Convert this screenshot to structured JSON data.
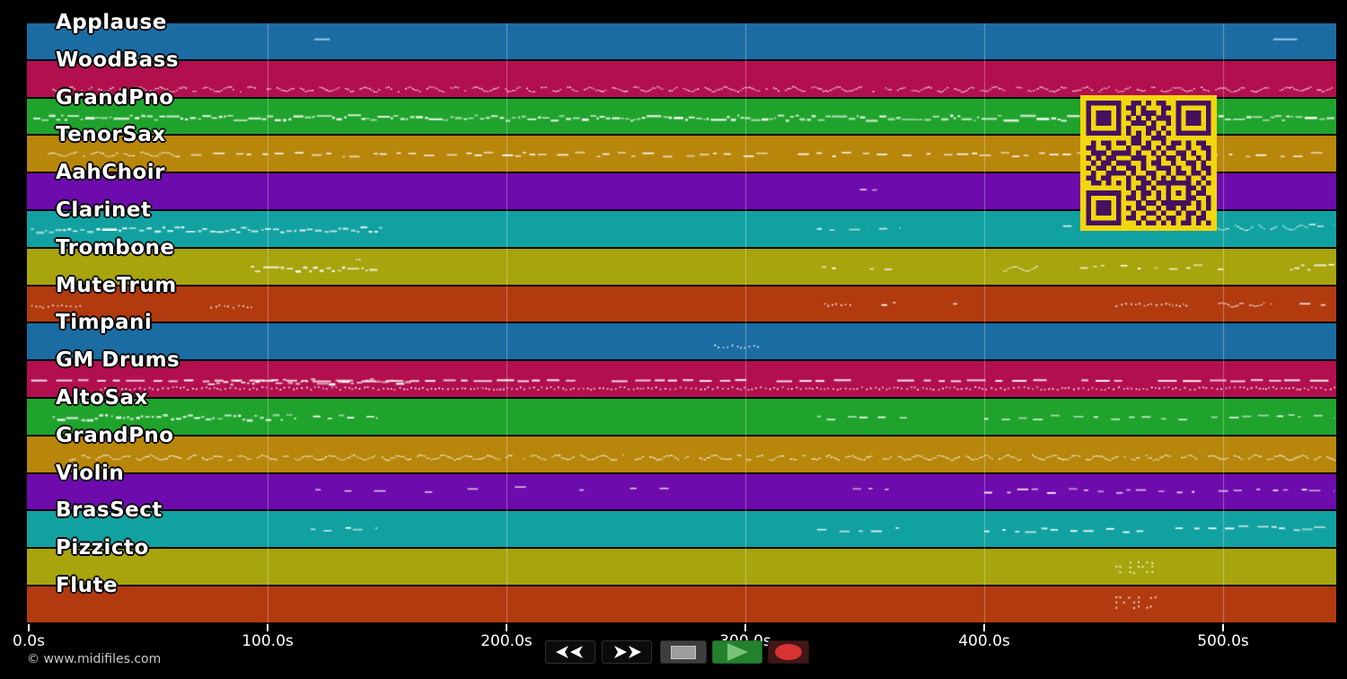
{
  "app": {
    "background": "#000000",
    "kind": "midi-track-visualizer"
  },
  "watermark": {
    "text": "© www.midifiles.com"
  },
  "axis": {
    "unit": "s",
    "t_max": 547,
    "ticks": [
      {
        "t": 0,
        "label": "0.0s"
      },
      {
        "t": 100,
        "label": "100.0s"
      },
      {
        "t": 200,
        "label": "200.0s"
      },
      {
        "t": 300,
        "label": "300.0s"
      },
      {
        "t": 400,
        "label": "400.0s"
      },
      {
        "t": 500,
        "label": "500.0s"
      }
    ],
    "gridline_color": "rgba(255,255,255,0.33)"
  },
  "palette": [
    "#1b6ca3",
    "#b20f4e",
    "#1fa32c",
    "#b8860b",
    "#6d0bad",
    "#12a1a1",
    "#a7a40d",
    "#b23a0f"
  ],
  "note_color": "#ffffff",
  "tracks": [
    {
      "name": "Applause",
      "color": "#1b6ca3",
      "segments": [
        {
          "t0": 119.5,
          "t1": 126,
          "y": 0.42,
          "style": "line",
          "color": "#8fbede"
        },
        {
          "t0": 521,
          "t1": 531,
          "y": 0.42,
          "style": "line",
          "color": "#8fbede"
        }
      ]
    },
    {
      "name": "WoodBass",
      "color": "#b20f4e",
      "segments": [
        {
          "t0": 10,
          "t1": 547,
          "y": 0.78,
          "style": "wavy",
          "density": 0.9
        }
      ]
    },
    {
      "name": "GrandPno",
      "color": "#1fa32c",
      "segments": [
        {
          "t0": 2,
          "t1": 547,
          "y": 0.52,
          "style": "block",
          "density": 0.85
        }
      ]
    },
    {
      "name": "TenorSax",
      "color": "#b8860b",
      "segments": [
        {
          "t0": 8,
          "t1": 62,
          "y": 0.5,
          "style": "wavy",
          "density": 0.5
        },
        {
          "t0": 62,
          "t1": 310,
          "y": 0.5,
          "style": "dash",
          "density": 0.55
        },
        {
          "t0": 322,
          "t1": 547,
          "y": 0.5,
          "style": "dash",
          "density": 0.45
        }
      ]
    },
    {
      "name": "AahChoir",
      "color": "#6d0bad",
      "segments": [
        {
          "t0": 348,
          "t1": 359,
          "y": 0.42,
          "style": "dash",
          "density": 0.5
        }
      ]
    },
    {
      "name": "Clarinet",
      "color": "#12a1a1",
      "segments": [
        {
          "t0": 1,
          "t1": 148,
          "y": 0.5,
          "style": "block",
          "density": 0.7
        },
        {
          "t0": 330,
          "t1": 352,
          "y": 0.45,
          "style": "dash",
          "density": 0.5
        },
        {
          "t0": 356,
          "t1": 365,
          "y": 0.5,
          "style": "dash",
          "density": 0.5
        },
        {
          "t0": 433,
          "t1": 462,
          "y": 0.45,
          "style": "dash",
          "density": 0.4
        },
        {
          "t0": 488,
          "t1": 535,
          "y": 0.45,
          "style": "wavy",
          "density": 0.5
        },
        {
          "t0": 536,
          "t1": 547,
          "y": 0.4,
          "style": "dash",
          "density": 0.6
        }
      ]
    },
    {
      "name": "Trombone",
      "color": "#a7a40d",
      "segments": [
        {
          "t0": 93,
          "t1": 146,
          "y": 0.55,
          "style": "block",
          "density": 0.6
        },
        {
          "t0": 137,
          "t1": 139,
          "y": 0.3,
          "style": "dots",
          "density": 0.5
        },
        {
          "t0": 332,
          "t1": 341,
          "y": 0.5,
          "style": "dash",
          "density": 0.4
        },
        {
          "t0": 352,
          "t1": 364,
          "y": 0.5,
          "style": "dash",
          "density": 0.5
        },
        {
          "t0": 408,
          "t1": 422,
          "y": 0.55,
          "style": "wavy",
          "density": 0.5
        },
        {
          "t0": 440,
          "t1": 500,
          "y": 0.5,
          "style": "dash",
          "density": 0.45
        },
        {
          "t0": 528,
          "t1": 547,
          "y": 0.5,
          "style": "block",
          "density": 0.6
        }
      ]
    },
    {
      "name": "MuteTrum",
      "color": "#b23a0f",
      "segments": [
        {
          "t0": 1,
          "t1": 22,
          "y": 0.55,
          "style": "dots",
          "density": 0.5
        },
        {
          "t0": 76,
          "t1": 93,
          "y": 0.55,
          "style": "dots",
          "density": 0.6
        },
        {
          "t0": 333,
          "t1": 344,
          "y": 0.5,
          "style": "dots",
          "density": 0.5
        },
        {
          "t0": 357,
          "t1": 363,
          "y": 0.5,
          "style": "dash",
          "density": 0.5
        },
        {
          "t0": 387,
          "t1": 391,
          "y": 0.5,
          "style": "dash",
          "density": 0.7
        },
        {
          "t0": 455,
          "t1": 485,
          "y": 0.5,
          "style": "dots",
          "density": 0.5
        },
        {
          "t0": 498,
          "t1": 520,
          "y": 0.5,
          "style": "wavy",
          "density": 0.5
        },
        {
          "t0": 532,
          "t1": 547,
          "y": 0.45,
          "style": "dash",
          "density": 0.5
        }
      ]
    },
    {
      "name": "Timpani",
      "color": "#1b6ca3",
      "segments": [
        {
          "t0": 287,
          "t1": 305,
          "y": 0.62,
          "style": "dots",
          "density": 0.8
        }
      ]
    },
    {
      "name": "GM Drums",
      "color": "#b20f4e",
      "segments": [
        {
          "t0": 1,
          "t1": 547,
          "y": 0.52,
          "style": "dashline",
          "density": 0.8
        },
        {
          "t0": 75,
          "t1": 160,
          "y": 0.55,
          "style": "block",
          "density": 0.7
        },
        {
          "t0": 30,
          "t1": 547,
          "y": 0.74,
          "style": "dots",
          "density": 0.25
        }
      ]
    },
    {
      "name": "AltoSax",
      "color": "#1fa32c",
      "segments": [
        {
          "t0": 10,
          "t1": 112,
          "y": 0.5,
          "style": "block",
          "density": 0.65
        },
        {
          "t0": 119,
          "t1": 146,
          "y": 0.5,
          "style": "dash",
          "density": 0.6
        },
        {
          "t0": 330,
          "t1": 368,
          "y": 0.5,
          "style": "dash",
          "density": 0.55
        },
        {
          "t0": 400,
          "t1": 490,
          "y": 0.5,
          "style": "dash",
          "density": 0.55
        },
        {
          "t0": 495,
          "t1": 547,
          "y": 0.45,
          "style": "dash",
          "density": 0.6
        }
      ]
    },
    {
      "name": "GrandPno",
      "color": "#b8860b",
      "segments": [
        {
          "t0": 17,
          "t1": 547,
          "y": 0.58,
          "style": "wavy",
          "density": 0.8
        }
      ]
    },
    {
      "name": "Violin",
      "color": "#6d0bad",
      "segments": [
        {
          "t0": 120,
          "t1": 290,
          "y": 0.42,
          "style": "sparse",
          "density": 0.2
        },
        {
          "t0": 345,
          "t1": 360,
          "y": 0.45,
          "style": "dash",
          "density": 0.4
        },
        {
          "t0": 400,
          "t1": 488,
          "y": 0.45,
          "style": "dash",
          "density": 0.5
        },
        {
          "t0": 498,
          "t1": 547,
          "y": 0.42,
          "style": "dash",
          "density": 0.45
        }
      ]
    },
    {
      "name": "BrasSect",
      "color": "#12a1a1",
      "segments": [
        {
          "t0": 118,
          "t1": 146,
          "y": 0.5,
          "style": "dash",
          "density": 0.5
        },
        {
          "t0": 330,
          "t1": 365,
          "y": 0.5,
          "style": "dash",
          "density": 0.45
        },
        {
          "t0": 400,
          "t1": 470,
          "y": 0.5,
          "style": "dash",
          "density": 0.45
        },
        {
          "t0": 480,
          "t1": 547,
          "y": 0.45,
          "style": "dash",
          "density": 0.6
        }
      ]
    },
    {
      "name": "Pizzicto",
      "color": "#a7a40d",
      "segments": [
        {
          "t0": 455,
          "t1": 472,
          "y": 0.35,
          "style": "cluster",
          "density": 0.6
        }
      ]
    },
    {
      "name": "Flute",
      "color": "#b23a0f",
      "segments": [
        {
          "t0": 455,
          "t1": 472,
          "y": 0.28,
          "style": "cluster",
          "density": 0.6
        }
      ]
    }
  ],
  "qr": {
    "background": "#f2d60e",
    "module_color": "#451060",
    "matrix": [
      "1111111001101011001111111",
      "1000001011010001101000001",
      "1011101001011101001011101",
      "1011101010101011101011101",
      "1011101001110100101011101",
      "1000001010001101001000001",
      "1111111010101010101111111",
      "0000000001100111000000000",
      "0101101101101001011010110",
      "1100100010011010110010011",
      "0111011110100101001101001",
      "1010110001110010110100101",
      "0101101110010110010011010",
      "1011010011010011101001011",
      "0100111101001100101101101",
      "1101100010110101010010010",
      "0110101010011011111110101",
      "0000000010110100100011010",
      "1111111001011010101010110",
      "1000001011010010100011001",
      "1011101000101101111110101",
      "1011101010110010110100101",
      "1011101001001101001011010",
      "1000001011010010110010110",
      "1111111000101101010110101"
    ]
  },
  "transport": {
    "buttons": [
      {
        "id": "rewind",
        "aria": "Rewind"
      },
      {
        "id": "fast-forward",
        "aria": "Fast forward"
      },
      {
        "id": "stop",
        "aria": "Stop"
      },
      {
        "id": "play",
        "aria": "Play"
      },
      {
        "id": "record",
        "aria": "Record"
      }
    ],
    "colors": {
      "bar": "#181818",
      "play_triangle": "#79c279",
      "record_dot": "#d83232",
      "stop_square": "#9d9d9d"
    }
  }
}
